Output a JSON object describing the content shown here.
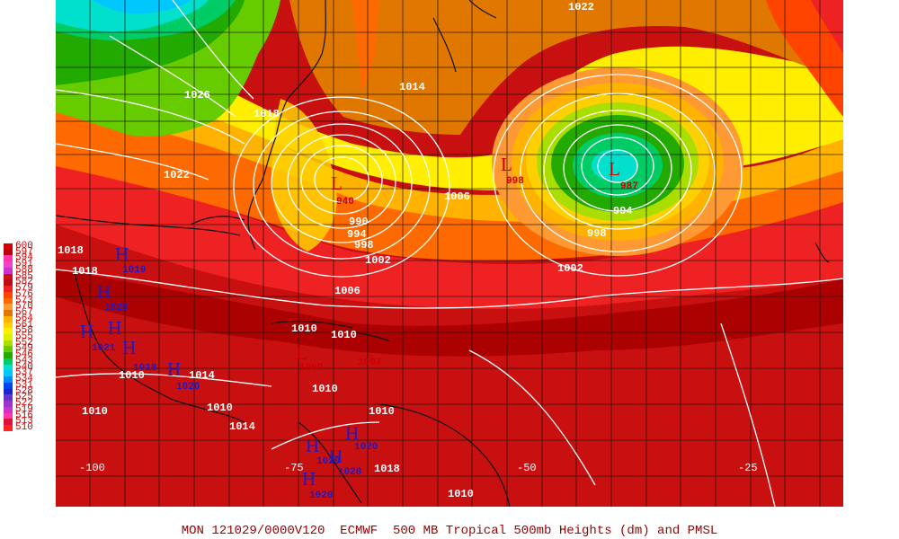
{
  "title_bar": "MON 121029/0000V120  ECMWF  500 MB Tropical 500mb Heights (dm) and PMSL",
  "legend": {
    "levels": [
      "600",
      "597",
      "594",
      "591",
      "588",
      "585",
      "582",
      "579",
      "576",
      "573",
      "570",
      "567",
      "564",
      "561",
      "558",
      "555",
      "552",
      "549",
      "546",
      "543",
      "540",
      "537",
      "534",
      "531",
      "528",
      "525",
      "522",
      "519",
      "516",
      "513",
      "510"
    ],
    "colors": [
      "#d40000",
      "#b80000",
      "#ff33aa",
      "#ee44cc",
      "#cc33cc",
      "#cc1111",
      "#b81010",
      "#ee2222",
      "#ff4400",
      "#ff6a00",
      "#ff9933",
      "#e07800",
      "#ffb300",
      "#ffd000",
      "#ffee00",
      "#ddee00",
      "#aadd00",
      "#66cc00",
      "#22aa00",
      "#00cc66",
      "#00e0cc",
      "#00c8ff",
      "#0088ff",
      "#0044ee",
      "#2222cc",
      "#6633cc",
      "#9933cc",
      "#cc33cc",
      "#ff33aa",
      "#dd1133",
      "#ff2222"
    ]
  },
  "longitudes": [
    "-100",
    "-75",
    "-50",
    "-25"
  ],
  "isobars": [
    "1022",
    "1026",
    "1018",
    "1014",
    "1022",
    "1006",
    "990",
    "994",
    "998",
    "1002",
    "1006",
    "1002",
    "998",
    "994",
    "1010",
    "1010",
    "1010",
    "1010",
    "1014",
    "1010",
    "1014",
    "1010",
    "1010",
    "1018",
    "1018",
    "1018",
    "1010"
  ],
  "systems": [
    {
      "type": "L",
      "value": "940"
    },
    {
      "type": "L",
      "value": "998"
    },
    {
      "type": "L",
      "value": "987"
    },
    {
      "type": "L",
      "value": "1009"
    },
    {
      "type": "L",
      "value": "1007"
    },
    {
      "type": "H",
      "value": "1019"
    },
    {
      "type": "H",
      "value": "1020"
    },
    {
      "type": "H",
      "value": "1021"
    },
    {
      "type": "H",
      "value": "1018"
    },
    {
      "type": "H",
      "value": "1020"
    },
    {
      "type": "H",
      "value": "1020"
    },
    {
      "type": "H",
      "value": "1020"
    },
    {
      "type": "H",
      "value": "1020"
    },
    {
      "type": "H",
      "value": "1020"
    }
  ],
  "colors": {
    "low_red": "#cc0000",
    "high_blue": "#1a1acc",
    "isobar": "#ffffff",
    "border": "#111111"
  }
}
